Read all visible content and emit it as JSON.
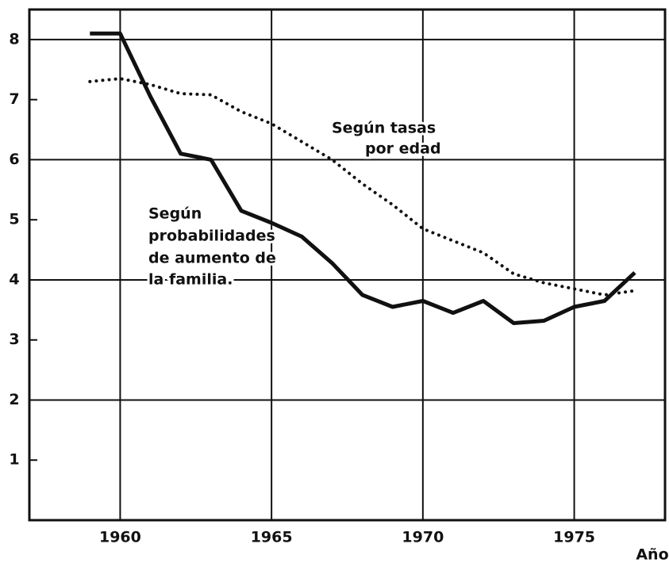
{
  "chart_data": {
    "type": "line",
    "x_label": "Año",
    "x": [
      1959,
      1960,
      1961,
      1962,
      1963,
      1964,
      1965,
      1966,
      1967,
      1968,
      1969,
      1970,
      1971,
      1972,
      1973,
      1974,
      1975,
      1976,
      1977
    ],
    "series": [
      {
        "color": "#111111",
        "style": "solid",
        "values": [
          8.1,
          8.1,
          7.05,
          6.1,
          6.0,
          5.15,
          4.95,
          4.72,
          4.28,
          3.75,
          3.55,
          3.65,
          3.45,
          3.65,
          3.28,
          3.32,
          3.55,
          3.65,
          4.12
        ]
      },
      {
        "color": "#111111",
        "style": "dotted",
        "values": [
          7.3,
          7.35,
          7.25,
          7.1,
          7.08,
          6.8,
          6.6,
          6.3,
          6.0,
          5.6,
          5.25,
          4.85,
          4.65,
          4.45,
          4.1,
          3.95,
          3.85,
          3.75,
          3.82
        ]
      }
    ],
    "annotations": [
      {
        "lines": [
          "Según tasas",
          "por edad"
        ]
      },
      {
        "lines": [
          "Según",
          "probabilidades",
          "de aumento de",
          "la familia."
        ]
      }
    ],
    "xlim": [
      1957,
      1978
    ],
    "xticks": [
      1960,
      1965,
      1970,
      1975
    ],
    "ylim": [
      0,
      8.5
    ],
    "yticks": [
      1,
      2,
      3,
      4,
      5,
      6,
      7,
      8
    ],
    "grid": true
  }
}
